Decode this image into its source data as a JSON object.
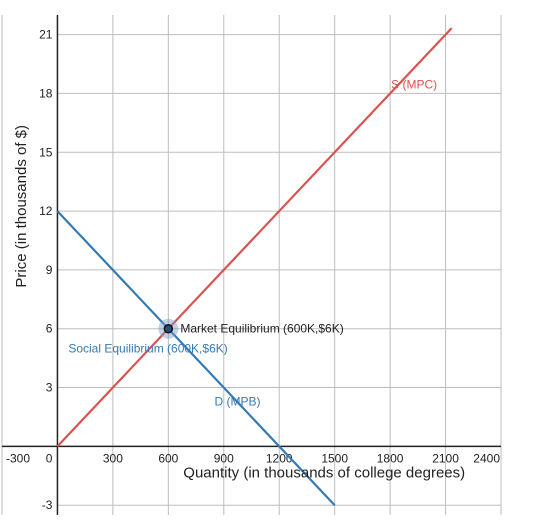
{
  "chart_data": {
    "type": "line",
    "title": "",
    "xlabel": "Quantity (in thousands of college degrees)",
    "ylabel": "Price (in thousands of $)",
    "xlim": [
      -300,
      2400
    ],
    "ylim": [
      -3.5,
      22
    ],
    "x_ticks": [
      -300,
      0,
      300,
      600,
      900,
      1200,
      1500,
      1800,
      2100,
      2400
    ],
    "y_ticks": [
      -3,
      3,
      6,
      9,
      12,
      15,
      18,
      21
    ],
    "grid": true,
    "series": [
      {
        "name": "S (MPC)",
        "color": "#d9534f",
        "x": [
          0,
          2133.3
        ],
        "y": [
          0,
          21.33
        ]
      },
      {
        "name": "D (MPB)",
        "color": "#337ab7",
        "x": [
          0,
          1500
        ],
        "y": [
          12,
          -3
        ]
      }
    ],
    "annotations": {
      "market_equilibrium": {
        "label": "Market Equilibrium (600K,$6K)",
        "x": 600,
        "y": 6,
        "color": "#222222"
      },
      "social_equilibrium": {
        "label": "Social Equilibrium (600K,$6K)",
        "x": 600,
        "y": 6,
        "color": "#337ab7"
      }
    }
  }
}
